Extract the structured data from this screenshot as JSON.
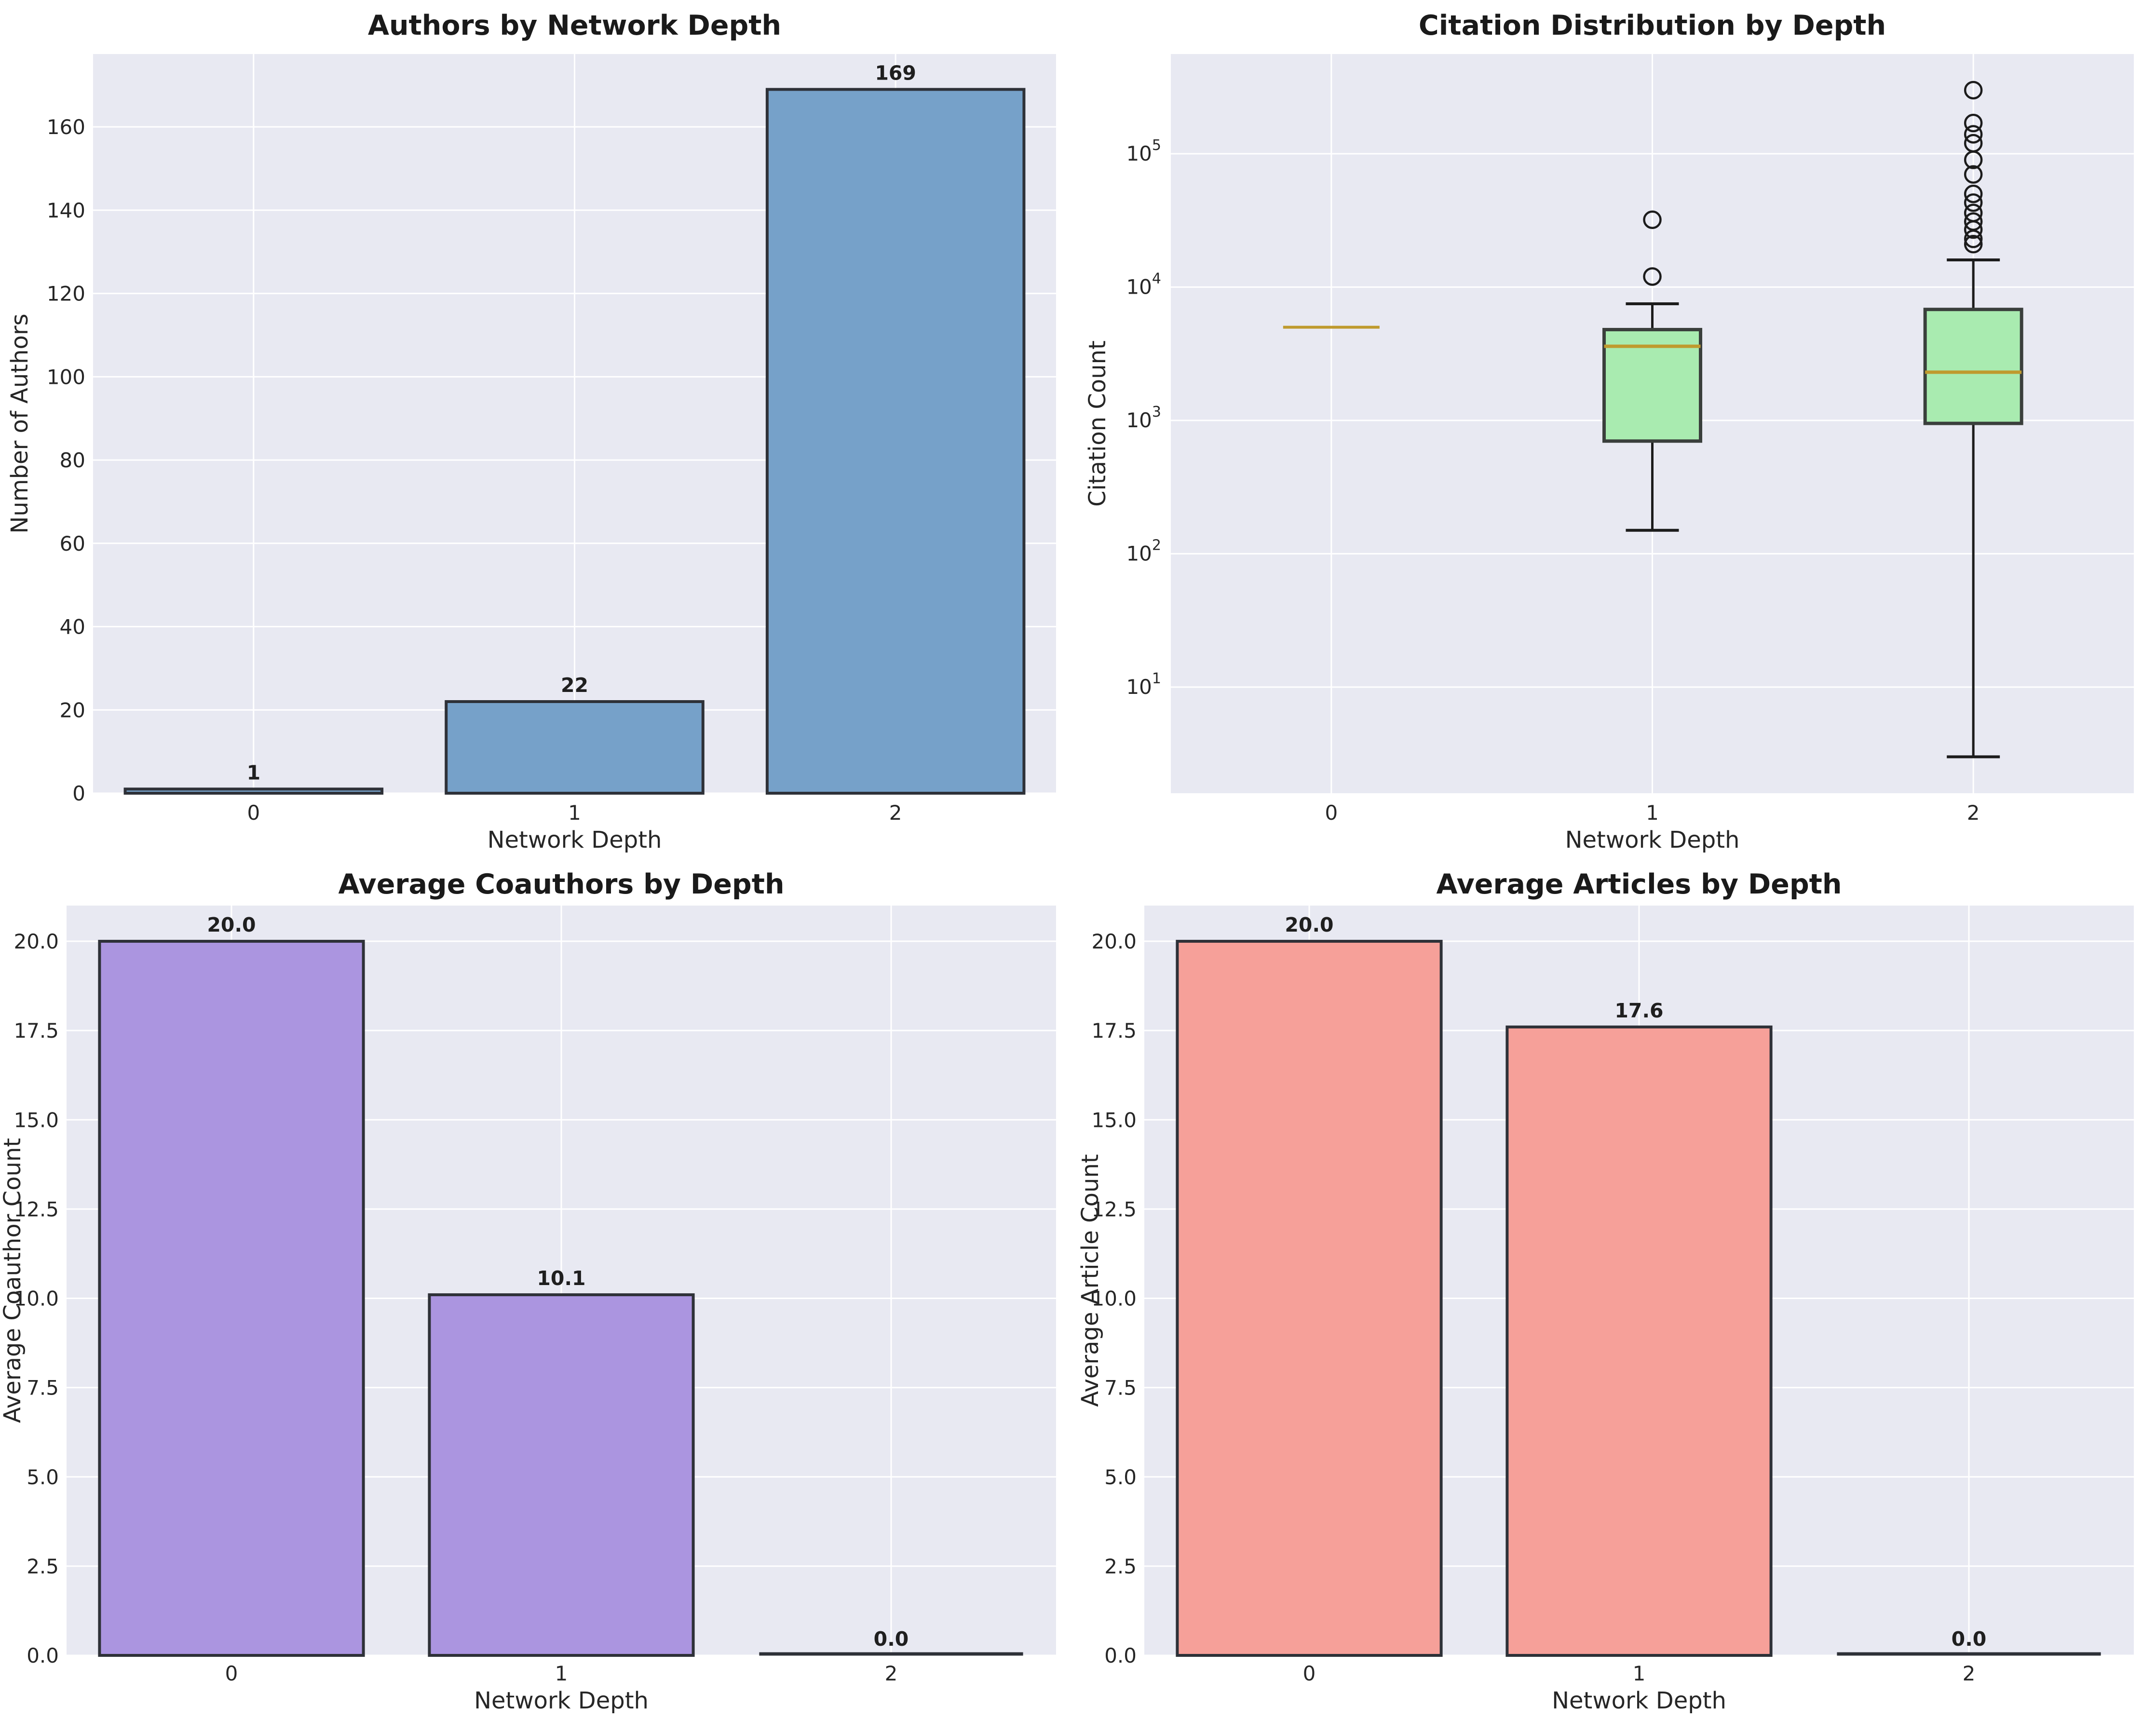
{
  "figure": {
    "background": "#ffffff",
    "axes_background": "#e8e9f2",
    "grid_color": "#ffffff",
    "text_color": "#262626",
    "title_color": "#1a1a1a"
  },
  "chart_data": [
    {
      "id": "authors-by-depth",
      "type": "bar",
      "title": "Authors by Network Depth",
      "xlabel": "Network Depth",
      "ylabel": "Number of Authors",
      "categories": [
        "0",
        "1",
        "2"
      ],
      "values": [
        1,
        22,
        169
      ],
      "value_labels": [
        "1",
        "22",
        "169"
      ],
      "yticks": [
        0,
        20,
        40,
        60,
        80,
        100,
        120,
        140,
        160
      ],
      "ytick_labels": [
        "0",
        "20",
        "40",
        "60",
        "80",
        "100",
        "120",
        "140",
        "160"
      ],
      "ylim": [
        0,
        177.5
      ],
      "grid": true,
      "legend": "none",
      "bar_color": "#76a1c9",
      "bar_edge_color": "#2e3138"
    },
    {
      "id": "citation-distribution",
      "type": "boxplot",
      "title": "Citation Distribution by Depth",
      "xlabel": "Network Depth",
      "ylabel": "Citation Count",
      "categories": [
        "0",
        "1",
        "2"
      ],
      "yscale": "log",
      "ytick_exponents": [
        1,
        2,
        3,
        4,
        5
      ],
      "ylim": [
        1.6,
        560000
      ],
      "grid": true,
      "box_fill_color": "#a9ebb0",
      "box_edge_color": "#3a3f3c",
      "median_color": "#bf9a2e",
      "whisker_color": "#1c1c1c",
      "boxes": [
        {
          "category": "0",
          "q1": 5000,
          "median": 5000,
          "q3": 5000,
          "whisker_low": 5000,
          "whisker_high": 5000,
          "outliers": []
        },
        {
          "category": "1",
          "q1": 700,
          "median": 3600,
          "q3": 4800,
          "whisker_low": 150,
          "whisker_high": 7500,
          "outliers": [
            12000,
            32000
          ]
        },
        {
          "category": "2",
          "q1": 950,
          "median": 2300,
          "q3": 6800,
          "whisker_low": 3,
          "whisker_high": 16000,
          "outliers": [
            21000,
            23000,
            27000,
            31000,
            36000,
            43000,
            50000,
            70000,
            90000,
            120000,
            140000,
            170000,
            300000
          ]
        }
      ]
    },
    {
      "id": "avg-coauthors",
      "type": "bar",
      "title": "Average Coauthors by Depth",
      "xlabel": "Network Depth",
      "ylabel": "Average Coauthor Count",
      "categories": [
        "0",
        "1",
        "2"
      ],
      "values": [
        20.0,
        10.1,
        0.0
      ],
      "value_labels": [
        "20.0",
        "10.1",
        "0.0"
      ],
      "yticks": [
        0,
        2.5,
        5,
        7.5,
        10,
        12.5,
        15,
        17.5,
        20
      ],
      "ytick_labels": [
        "0.0",
        "2.5",
        "5.0",
        "7.5",
        "10.0",
        "12.5",
        "15.0",
        "17.5",
        "20.0"
      ],
      "ylim": [
        0,
        21
      ],
      "grid": true,
      "legend": "none",
      "bar_color": "#ab95e0",
      "bar_edge_color": "#2e3138"
    },
    {
      "id": "avg-articles",
      "type": "bar",
      "title": "Average Articles by Depth",
      "xlabel": "Network Depth",
      "ylabel": "Average Article Count",
      "categories": [
        "0",
        "1",
        "2"
      ],
      "values": [
        20.0,
        17.6,
        0.0
      ],
      "value_labels": [
        "20.0",
        "17.6",
        "0.0"
      ],
      "yticks": [
        0,
        2.5,
        5,
        7.5,
        10,
        12.5,
        15,
        17.5,
        20
      ],
      "ytick_labels": [
        "0.0",
        "2.5",
        "5.0",
        "7.5",
        "10.0",
        "12.5",
        "15.0",
        "17.5",
        "20.0"
      ],
      "ylim": [
        0,
        21
      ],
      "grid": true,
      "legend": "none",
      "bar_color": "#f6a099",
      "bar_edge_color": "#2e3138"
    }
  ]
}
